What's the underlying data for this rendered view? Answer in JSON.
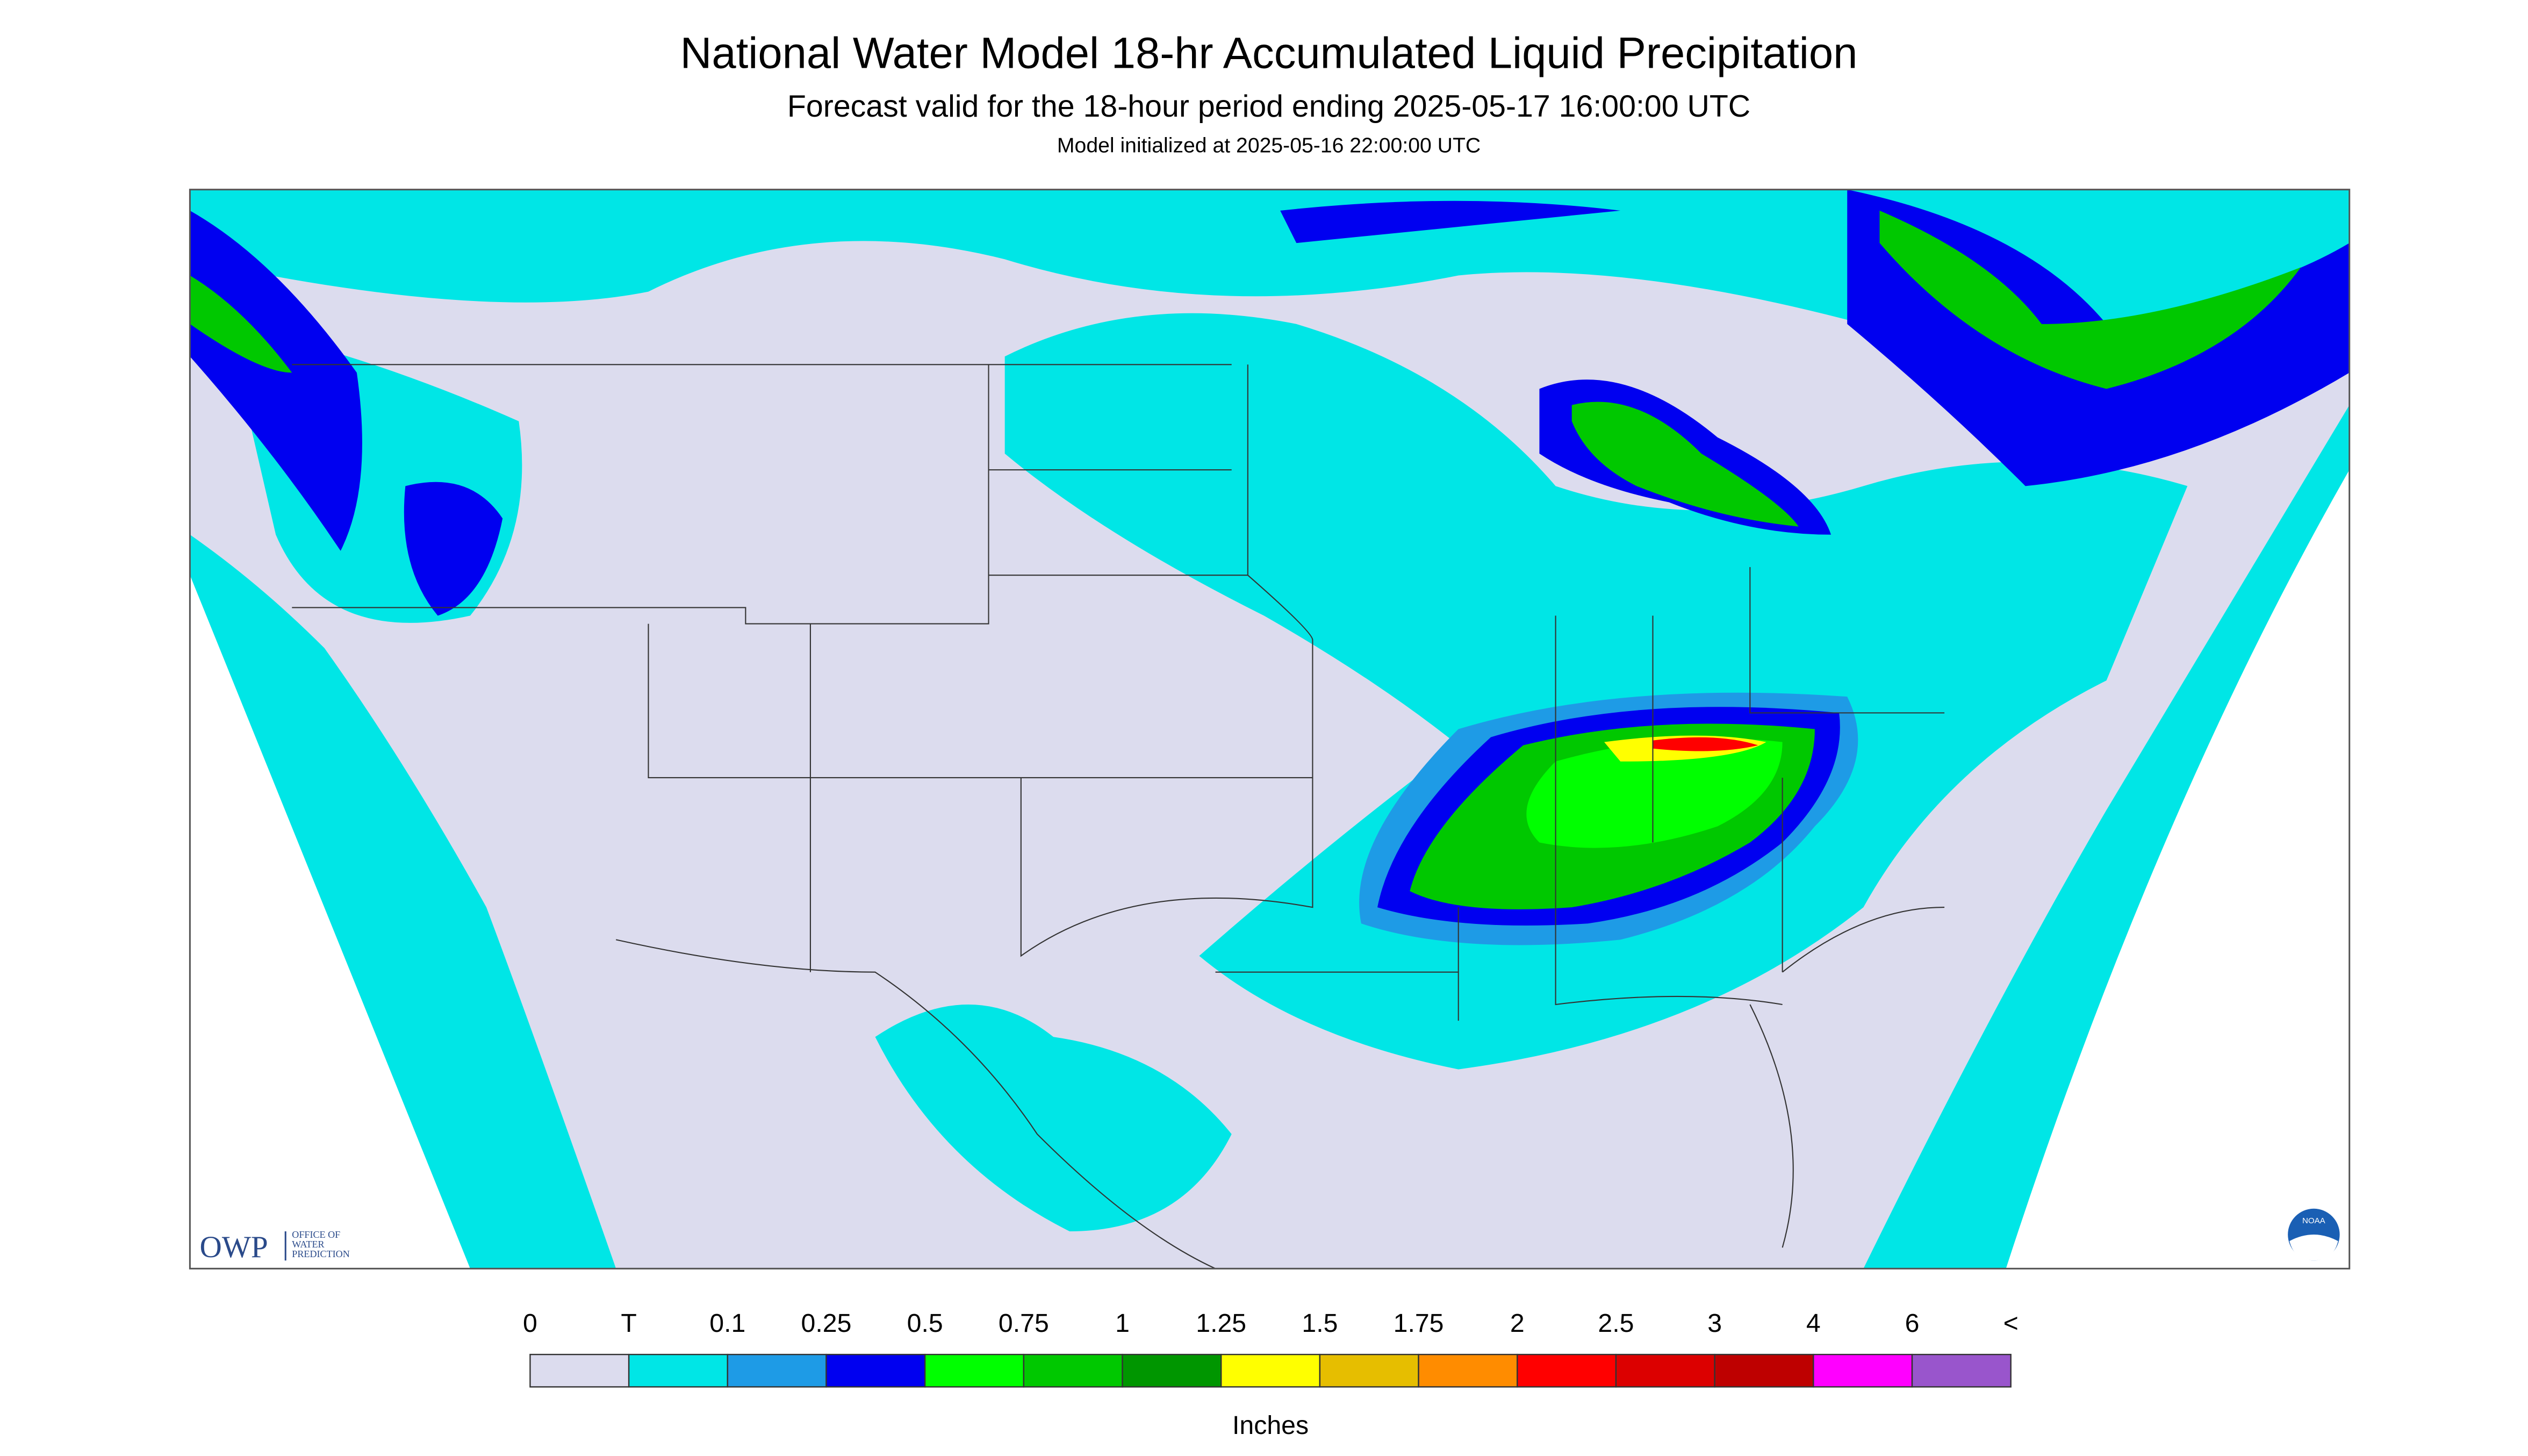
{
  "header": {
    "title": "National Water Model 18-hr Accumulated Liquid Precipitation",
    "subtitle": "Forecast valid for the 18-hour period ending 2025-05-17 16:00:00 UTC",
    "initialized": "Model initialized at 2025-05-16 22:00:00 UTC"
  },
  "logos": {
    "owp": "OWP",
    "owp_text": [
      "OFFICE OF",
      "WATER",
      "PREDICTION"
    ],
    "noaa": "NOAA"
  },
  "legend": {
    "labels": [
      "0",
      "T",
      "0.1",
      "0.25",
      "0.5",
      "0.75",
      "1",
      "1.25",
      "1.5",
      "1.75",
      "2",
      "2.5",
      "3",
      "4",
      "6",
      "<"
    ],
    "colors": [
      "#dcdcee",
      "#00e6e6",
      "#1e9be6",
      "#0000f0",
      "#00ff00",
      "#00c800",
      "#009600",
      "#ffff00",
      "#e6be00",
      "#ff8c00",
      "#ff0000",
      "#dc0000",
      "#be0000",
      "#ff00ff",
      "#9955cc"
    ],
    "unit": "Inches"
  }
}
